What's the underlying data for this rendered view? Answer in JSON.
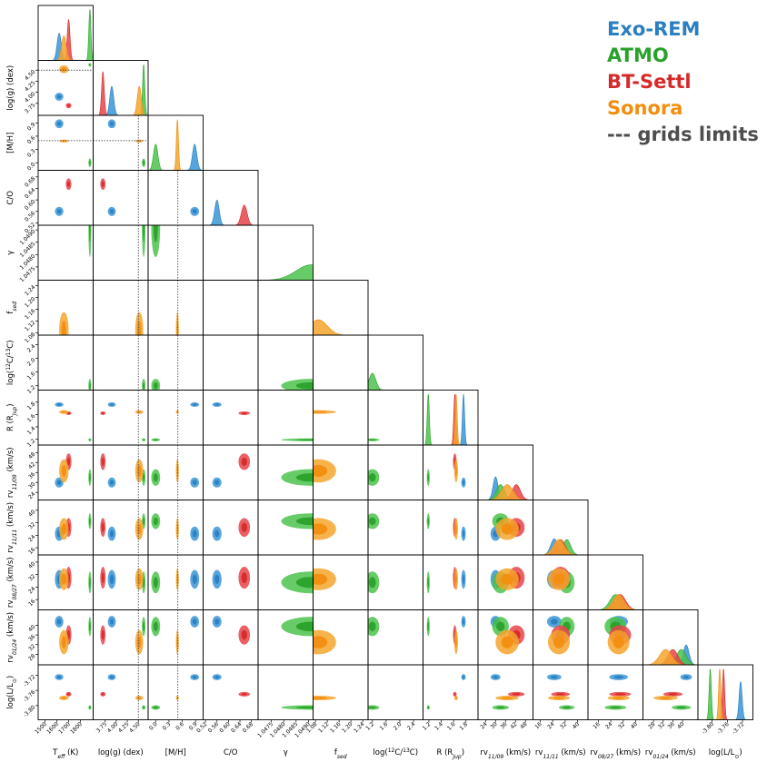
{
  "chart_data": {
    "type": "corner",
    "title": "",
    "legend_position": "top-right",
    "models": [
      {
        "key": "exo",
        "name": "Exo-REM",
        "color": "#2a7fc0",
        "fill": "#3a95d6"
      },
      {
        "key": "atmo",
        "name": "ATMO",
        "color": "#2aa12a",
        "fill": "#4cc24c"
      },
      {
        "key": "bt",
        "name": "BT-Settl",
        "color": "#d62a2a",
        "fill": "#e8444a"
      },
      {
        "key": "son",
        "name": "Sonora",
        "color": "#f28e10",
        "fill": "#f5a52c"
      }
    ],
    "grid_limits_label": "--- grids limits",
    "grid_limits_color": "#4d4d4d",
    "parameters": [
      {
        "key": "teff",
        "label": "T",
        "sub": "eff",
        "post": " (K)",
        "range": [
          1450,
          1900
        ],
        "ticks": [
          "1500",
          "1600",
          "1700",
          "1800"
        ],
        "tickvals": [
          1500,
          1600,
          1700,
          1800
        ],
        "ylabel": ""
      },
      {
        "key": "logg",
        "label": "log(g) (dex)",
        "range": [
          3.5,
          4.7
        ],
        "ticks": [
          "3.75",
          "4.00",
          "4.25",
          "4.50"
        ],
        "tickvals": [
          3.75,
          4.0,
          4.25,
          4.5
        ],
        "ylabel": "log(g) (dex)"
      },
      {
        "key": "mh",
        "label": "[M/H]",
        "range": [
          -0.15,
          1.05
        ],
        "ticks": [
          "0.0",
          "0.3",
          "0.6",
          "0.9"
        ],
        "tickvals": [
          0.0,
          0.3,
          0.6,
          0.9
        ],
        "ylabel": "[M/H]"
      },
      {
        "key": "co",
        "label": "C/O",
        "range": [
          0.515,
          0.7
        ],
        "ticks": [
          "0.52",
          "0.56",
          "0.60",
          "0.64",
          "0.68"
        ],
        "tickvals": [
          0.52,
          0.56,
          0.6,
          0.64,
          0.68
        ],
        "ylabel": "C/O"
      },
      {
        "key": "gamma",
        "label": "γ",
        "range": [
          1.047,
          1.04915
        ],
        "ticks": [
          "1.0475",
          "1.0480",
          "1.0485",
          "1.0490"
        ],
        "tickvals": [
          1.0475,
          1.048,
          1.0485,
          1.049
        ],
        "ylabel": "γ"
      },
      {
        "key": "fsed",
        "label": "f",
        "sub": "sed",
        "post": "",
        "range": [
          1.075,
          1.255
        ],
        "ticks": [
          "1.08",
          "1.12",
          "1.16",
          "1.20",
          "1.24"
        ],
        "tickvals": [
          1.08,
          1.12,
          1.16,
          1.2,
          1.24
        ],
        "ylabel": "f_sed"
      },
      {
        "key": "c1213",
        "label": "log(",
        "sup1": "12",
        "mid": "C/",
        "sup2": "13",
        "post": "C)",
        "range": [
          1.1,
          2.65
        ],
        "ticks": [
          "1.2",
          "1.6",
          "2.0",
          "2.4"
        ],
        "tickvals": [
          1.2,
          1.6,
          2.0,
          2.4
        ],
        "ylabel": "log(12C/13C)"
      },
      {
        "key": "rad",
        "label": "R (R",
        "sub": "Jup",
        "post": ")",
        "range": [
          1.12,
          1.98
        ],
        "ticks": [
          "1.2",
          "1.4",
          "1.6",
          "1.8"
        ],
        "tickvals": [
          1.2,
          1.4,
          1.6,
          1.8
        ],
        "ylabel": "R (RJup)"
      },
      {
        "key": "rv1109",
        "label": "rv",
        "sub": "11/09",
        "post": " (km/s)",
        "range": [
          20,
          52
        ],
        "ticks": [
          "24",
          "30",
          "36",
          "42",
          "48"
        ],
        "tickvals": [
          24,
          30,
          36,
          42,
          48
        ],
        "ylabel": "rv11/09 (km/s)"
      },
      {
        "key": "rv1111",
        "label": "rv",
        "sub": "11/11",
        "post": " (km/s)",
        "range": [
          12,
          46
        ],
        "ticks": [
          "16",
          "24",
          "32",
          "40"
        ],
        "tickvals": [
          16,
          24,
          32,
          40
        ],
        "ylabel": "rv11/11 (km/s)"
      },
      {
        "key": "rv0827",
        "label": "rv",
        "sub": "08/27",
        "post": " (km/s)",
        "range": [
          10,
          44
        ],
        "ticks": [
          "16",
          "24",
          "32",
          "40"
        ],
        "tickvals": [
          16,
          24,
          32,
          40
        ],
        "ylabel": "rv08/27 (km/s)"
      },
      {
        "key": "rv0124",
        "label": "rv",
        "sub": "01/24",
        "post": " (km/s)",
        "range": [
          24,
          46
        ],
        "ticks": [
          "28",
          "32",
          "36",
          "40"
        ],
        "tickvals": [
          28,
          32,
          36,
          40
        ],
        "ylabel": "rv01/24 (km/s)"
      },
      {
        "key": "lum",
        "label": "log(L/L",
        "sub": "⊙",
        "post": ")",
        "range": [
          -3.835,
          -3.695
        ],
        "ticks": [
          "-3.80",
          "-3.76",
          "-3.72"
        ],
        "tickvals": [
          -3.8,
          -3.76,
          -3.72
        ],
        "ylabel": "log(L/L⊙)"
      }
    ],
    "posteriors": {
      "exo": {
        "teff": [
          1620,
          18
        ],
        "logg": [
          3.9,
          0.045
        ],
        "mh": [
          0.88,
          0.05
        ],
        "co": [
          0.56,
          0.008
        ],
        "gamma": null,
        "fsed": null,
        "c1213": null,
        "rad": [
          1.76,
          0.018
        ],
        "rv1109": [
          30,
          1.5
        ],
        "rv1111": [
          25,
          2.3
        ],
        "rv0827": [
          29,
          3.0
        ],
        "rv0124": [
          41.5,
          1.2
        ],
        "lum": [
          -3.725,
          0.004
        ]
      },
      "atmo": {
        "teff": [
          1880,
          5
        ],
        "logg": [
          4.62,
          0.02
        ],
        "mh": [
          0.0,
          0.05
        ],
        "co": null,
        "gamma": [
          1.0491,
          0.0006
        ],
        "fsed": null,
        "c1213": [
          1.2,
          0.1
        ],
        "rad": [
          1.19,
          0.01
        ],
        "rv1109": [
          33,
          2.5
        ],
        "rv1111": [
          33,
          2.5
        ],
        "rv0827": [
          27,
          3.5
        ],
        "rv0124": [
          39.5,
          2.0
        ],
        "lum": [
          -3.805,
          0.003
        ]
      },
      "bt": {
        "teff": [
          1700,
          12
        ],
        "logg": [
          3.7,
          0.03
        ],
        "mh": null,
        "co": [
          0.655,
          0.01
        ],
        "gamma": null,
        "fsed": null,
        "c1213": null,
        "rad": [
          1.62,
          0.015
        ],
        "rv1109": [
          42.5,
          2.5
        ],
        "rv1111": [
          29,
          3.0
        ],
        "rv0827": [
          30,
          3.5
        ],
        "rv0124": [
          36,
          2.0
        ],
        "lum": [
          -3.77,
          0.003
        ]
      },
      "son": {
        "teff": [
          1660,
          20
        ],
        "logg": [
          4.52,
          0.045
        ],
        "mh": [
          0.49,
          0.012
        ],
        "co": null,
        "gamma": null,
        "fsed": [
          1.09,
          0.03
        ],
        "c1213": null,
        "rad": [
          1.64,
          0.015
        ],
        "rv1109": [
          37,
          3.5
        ],
        "rv1111": [
          28,
          3.5
        ],
        "rv0827": [
          29,
          3.5
        ],
        "rv0124": [
          33,
          2.5
        ],
        "lum": [
          -3.78,
          0.003
        ]
      }
    },
    "grid_limits": {
      "logg": 4.5,
      "mh": 0.5
    }
  }
}
